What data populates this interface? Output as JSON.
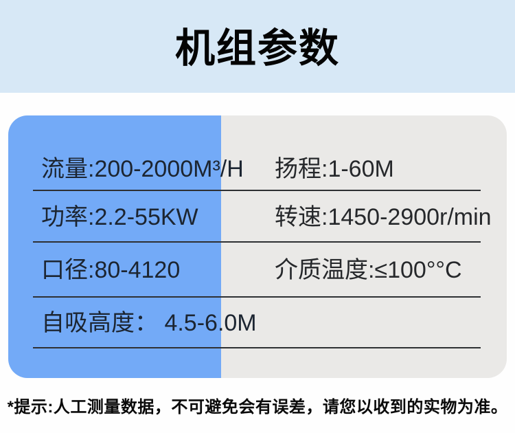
{
  "header": {
    "title": "机组参数",
    "bg_color": "#d7e8f6"
  },
  "spec_card": {
    "left_column_color": "#73aaf7",
    "right_column_color": "#eae9e7",
    "divider_color": "#2e3033",
    "rows": [
      {
        "left": "流量:200-2000M³/H",
        "right": "扬程:1-60M"
      },
      {
        "left": "功率:2.2-55KW",
        "right": "转速:1450-2900r/min"
      },
      {
        "left": "口径:80-4120",
        "right": "介质温度:≤100°°C"
      },
      {
        "left": "自吸高度： 4.5-6.0M",
        "right": ""
      }
    ]
  },
  "footer": {
    "note": "*提示:人工测量数据，不可避免会有误差，请您以收到的实物为准。"
  }
}
